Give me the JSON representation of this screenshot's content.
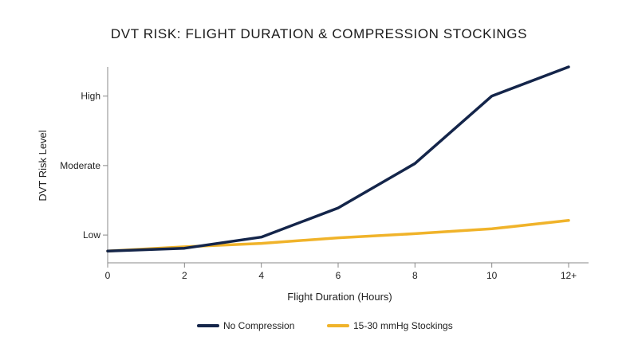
{
  "chart_data": {
    "type": "line",
    "title": "DVT RISK: FLIGHT DURATION & COMPRESSION STOCKINGS",
    "xlabel": "Flight Duration (Hours)",
    "ylabel": "DVT Risk Level",
    "x": [
      0,
      2,
      4,
      6,
      8,
      10,
      12
    ],
    "x_tick_labels": [
      "0",
      "2",
      "4",
      "6",
      "8",
      "10",
      "12+"
    ],
    "y_tick_values": [
      1,
      2,
      3
    ],
    "y_tick_labels": [
      "Low",
      "Moderate",
      "High"
    ],
    "ylim": [
      0.6,
      3.42
    ],
    "xlim": [
      0,
      12.5
    ],
    "grid": false,
    "legend_position": "bottom",
    "series": [
      {
        "name": "No Compression",
        "color": "#14254a",
        "values": [
          0.77,
          0.81,
          0.97,
          1.39,
          2.03,
          3.0,
          3.42
        ]
      },
      {
        "name": "15-30 mmHg Stockings",
        "color": "#f0b32a",
        "values": [
          0.77,
          0.83,
          0.88,
          0.96,
          1.02,
          1.09,
          1.21
        ]
      }
    ]
  }
}
